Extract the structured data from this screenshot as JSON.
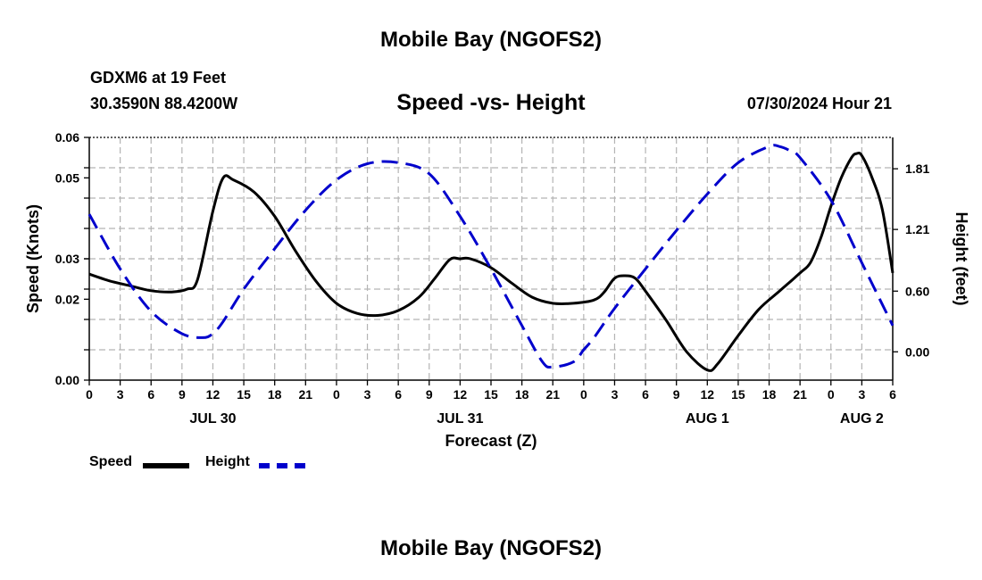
{
  "page_title": "Mobile Bay (NGOFS2)",
  "station": {
    "name_line": "GDXM6 at 19 Feet",
    "coord_line": "30.3590N  88.4200W"
  },
  "subtitle": "Speed -vs- Height",
  "timestamp": "07/30/2024 Hour 21",
  "footer_title": "Mobile Bay (NGOFS2)",
  "colors": {
    "speed": "#000000",
    "height": "#0000cc",
    "grid": "#b4b4b4"
  },
  "chart_data": {
    "type": "line",
    "title": "Speed -vs- Height",
    "xlabel": "Forecast (Z)",
    "ylabel": "Speed (Knots)",
    "ylabel_right": "Height (feet)",
    "x_unit": "hours since 2024-07-30 00Z",
    "xlim": [
      0,
      78
    ],
    "ylim": [
      0,
      0.06
    ],
    "ylim_right": [
      -0.28,
      2.12
    ],
    "grid": true,
    "x_ticks": [
      {
        "x": 0,
        "label": "0"
      },
      {
        "x": 3,
        "label": "3"
      },
      {
        "x": 6,
        "label": "6"
      },
      {
        "x": 9,
        "label": "9"
      },
      {
        "x": 12,
        "label": "12"
      },
      {
        "x": 15,
        "label": "15"
      },
      {
        "x": 18,
        "label": "18"
      },
      {
        "x": 21,
        "label": "21"
      },
      {
        "x": 24,
        "label": "0"
      },
      {
        "x": 27,
        "label": "3"
      },
      {
        "x": 30,
        "label": "6"
      },
      {
        "x": 33,
        "label": "9"
      },
      {
        "x": 36,
        "label": "12"
      },
      {
        "x": 39,
        "label": "15"
      },
      {
        "x": 42,
        "label": "18"
      },
      {
        "x": 45,
        "label": "21"
      },
      {
        "x": 48,
        "label": "0"
      },
      {
        "x": 51,
        "label": "3"
      },
      {
        "x": 54,
        "label": "6"
      },
      {
        "x": 57,
        "label": "9"
      },
      {
        "x": 60,
        "label": "12"
      },
      {
        "x": 63,
        "label": "15"
      },
      {
        "x": 66,
        "label": "18"
      },
      {
        "x": 69,
        "label": "21"
      },
      {
        "x": 72,
        "label": "0"
      },
      {
        "x": 75,
        "label": "3"
      },
      {
        "x": 78,
        "label": "6"
      }
    ],
    "date_labels": [
      {
        "x": 12,
        "label": "JUL 30"
      },
      {
        "x": 36,
        "label": "JUL 31"
      },
      {
        "x": 60,
        "label": "AUG 1"
      },
      {
        "x": 75,
        "label": "AUG 2"
      }
    ],
    "y_ticks_left": [
      {
        "value": 0.0,
        "label": "0.00"
      },
      {
        "value": 0.02,
        "label": "0.02"
      },
      {
        "value": 0.03,
        "label": "0.03"
      },
      {
        "value": 0.05,
        "label": "0.05"
      },
      {
        "value": 0.06,
        "label": "0.06"
      }
    ],
    "y_ticks_right": [
      {
        "value": 0.0,
        "label": "0.00"
      },
      {
        "value": 0.6,
        "label": "0.60"
      },
      {
        "value": 1.21,
        "label": "1.21"
      },
      {
        "value": 1.81,
        "label": "1.81"
      }
    ],
    "series": [
      {
        "name": "Speed",
        "axis": "left",
        "style": "solid",
        "x": [
          0,
          2,
          4,
          6,
          8,
          9.5,
          10.5,
          12,
          13,
          14,
          16,
          18,
          20,
          22,
          24,
          26,
          28,
          30,
          32,
          33.5,
          35,
          36,
          37,
          39,
          41,
          43,
          45,
          47,
          49,
          50,
          51,
          52,
          53,
          54,
          56,
          58,
          60,
          61,
          63,
          65,
          67,
          69,
          70,
          71,
          72,
          73,
          74,
          74.5,
          75,
          76,
          77,
          78
        ],
        "y": [
          0.0262,
          0.0245,
          0.0233,
          0.0221,
          0.0218,
          0.0225,
          0.0248,
          0.0418,
          0.05,
          0.0495,
          0.0465,
          0.0405,
          0.032,
          0.0245,
          0.019,
          0.0165,
          0.016,
          0.0172,
          0.0205,
          0.025,
          0.0298,
          0.03,
          0.03,
          0.0278,
          0.024,
          0.0205,
          0.019,
          0.019,
          0.0198,
          0.0218,
          0.0252,
          0.0258,
          0.0252,
          0.022,
          0.0148,
          0.007,
          0.0025,
          0.004,
          0.011,
          0.0175,
          0.022,
          0.0265,
          0.029,
          0.035,
          0.043,
          0.05,
          0.055,
          0.056,
          0.0555,
          0.05,
          0.042,
          0.0265
        ]
      },
      {
        "name": "Height",
        "axis": "right",
        "style": "dashed",
        "x": [
          0,
          3,
          6,
          9,
          11,
          12,
          13,
          15,
          18,
          21,
          24,
          27,
          30,
          33,
          36,
          39,
          42,
          44,
          45,
          47,
          48,
          49,
          51,
          54,
          57,
          60,
          63,
          66,
          67,
          68,
          69,
          72,
          75,
          78
        ],
        "y": [
          1.36,
          0.82,
          0.4,
          0.18,
          0.14,
          0.18,
          0.3,
          0.62,
          1.02,
          1.4,
          1.7,
          1.86,
          1.87,
          1.76,
          1.34,
          0.82,
          0.26,
          -0.1,
          -0.15,
          -0.1,
          0.02,
          0.14,
          0.43,
          0.82,
          1.2,
          1.56,
          1.87,
          2.03,
          2.03,
          1.99,
          1.92,
          1.5,
          0.88,
          0.26
        ]
      }
    ],
    "legend": [
      {
        "name": "Speed",
        "style": "solid",
        "color": "#000000"
      },
      {
        "name": "Height",
        "style": "dashed",
        "color": "#0000cc"
      }
    ]
  }
}
